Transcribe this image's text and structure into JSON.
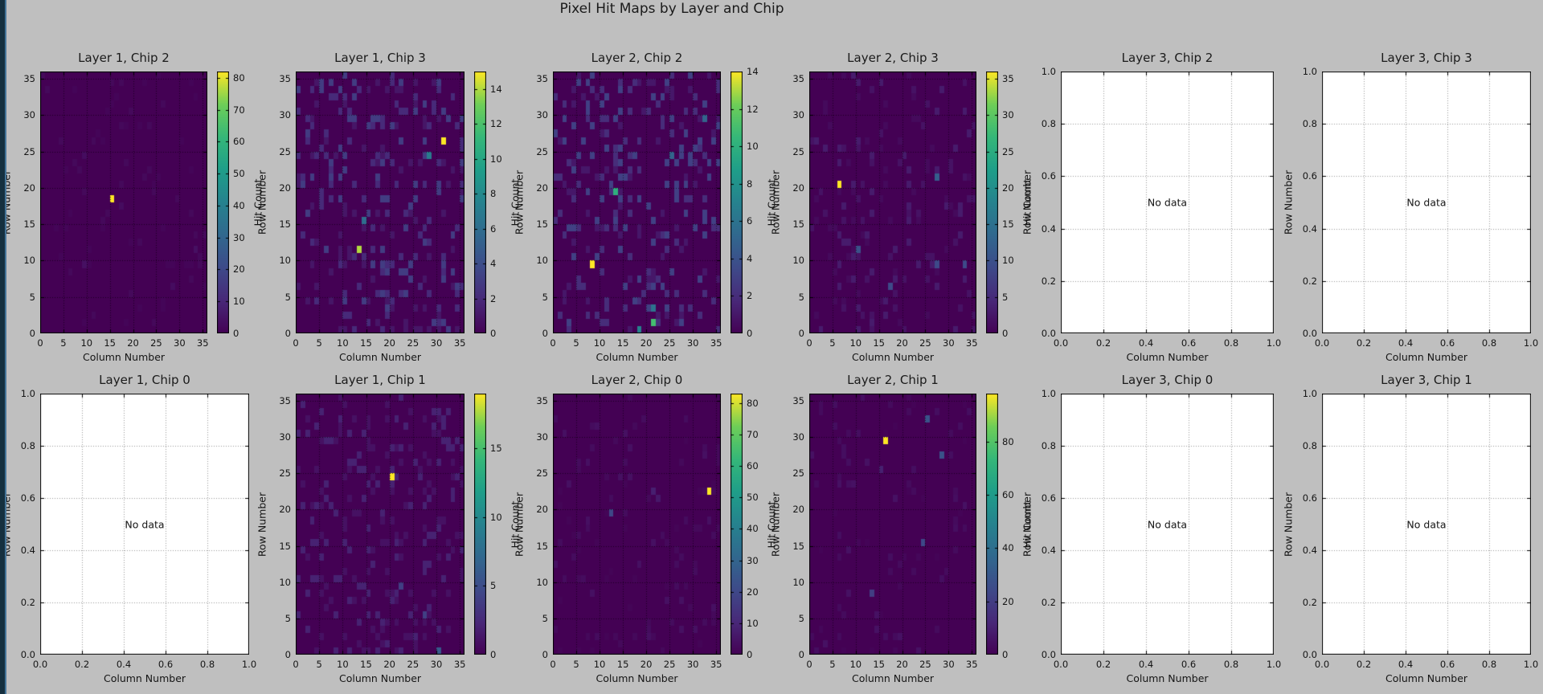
{
  "figure": {
    "title": "Pixel Hit Maps by Layer and Chip",
    "background_color": "#bfbfbf",
    "left_edge_dark": "#15303f",
    "left_edge_light": "#447498"
  },
  "shared": {
    "xlabel": "Column Number",
    "ylabel": "Row Number",
    "colorbar_label": "Hit Count",
    "no_data_text": "No data",
    "colormap": "viridis",
    "viridis_rgb_stops": [
      [
        68,
        1,
        84
      ],
      [
        72,
        40,
        120
      ],
      [
        62,
        74,
        137
      ],
      [
        49,
        104,
        142
      ],
      [
        38,
        130,
        142
      ],
      [
        31,
        158,
        137
      ],
      [
        53,
        183,
        121
      ],
      [
        110,
        206,
        88
      ],
      [
        253,
        231,
        37
      ]
    ],
    "heatmap_axis_ticks": [
      0,
      5,
      10,
      15,
      20,
      25,
      30,
      35
    ],
    "empty_axis_ticks": [
      "0.0",
      "0.2",
      "0.4",
      "0.6",
      "0.8",
      "1.0"
    ],
    "bins": 36,
    "hotspot_format": "[column, row, hit_count]"
  },
  "chart_data": [
    {
      "type": "heatmap",
      "grid": [
        0,
        0
      ],
      "title": "Layer 1, Chip 2",
      "vmin": 0,
      "vmax": 82,
      "colorbar_ticks": [
        0,
        10,
        20,
        30,
        40,
        50,
        60,
        70,
        80
      ],
      "hotspots": [
        [
          15,
          18,
          82
        ],
        [
          9,
          9,
          4
        ],
        [
          33,
          11,
          4
        ],
        [
          9,
          24,
          3
        ],
        [
          17,
          17,
          3
        ],
        [
          28,
          6,
          3
        ]
      ],
      "noise": {
        "seed": 11,
        "density": 0.05,
        "max": 2
      }
    },
    {
      "type": "heatmap",
      "grid": [
        0,
        1
      ],
      "title": "Layer 1, Chip 3",
      "vmin": 0,
      "vmax": 15,
      "colorbar_ticks": [
        0,
        2,
        4,
        6,
        8,
        10,
        12,
        14
      ],
      "hotspots": [
        [
          31,
          26,
          15
        ],
        [
          13,
          11,
          14
        ],
        [
          14,
          15,
          6
        ],
        [
          28,
          24,
          7
        ]
      ],
      "noise": {
        "seed": 22,
        "density": 0.18,
        "max": 3
      }
    },
    {
      "type": "heatmap",
      "grid": [
        0,
        2
      ],
      "title": "Layer 2, Chip 2",
      "vmin": 0,
      "vmax": 14,
      "colorbar_ticks": [
        0,
        2,
        4,
        6,
        8,
        10,
        12,
        14
      ],
      "hotspots": [
        [
          8,
          9,
          14
        ],
        [
          13,
          19,
          10
        ],
        [
          21,
          1,
          11
        ],
        [
          18,
          0,
          7
        ],
        [
          21,
          3,
          6
        ],
        [
          25,
          24,
          5
        ],
        [
          32,
          29,
          5
        ]
      ],
      "noise": {
        "seed": 33,
        "density": 0.18,
        "max": 3
      }
    },
    {
      "type": "heatmap",
      "grid": [
        0,
        3
      ],
      "title": "Layer 2, Chip 3",
      "vmin": 0,
      "vmax": 36,
      "colorbar_ticks": [
        0,
        5,
        10,
        15,
        20,
        25,
        30,
        35
      ],
      "hotspots": [
        [
          6,
          20,
          36
        ],
        [
          27,
          21,
          12
        ],
        [
          10,
          11,
          10
        ],
        [
          27,
          9,
          9
        ],
        [
          33,
          9,
          9
        ],
        [
          17,
          6,
          9
        ]
      ],
      "noise": {
        "seed": 44,
        "density": 0.12,
        "max": 3
      }
    },
    {
      "type": "empty",
      "grid": [
        0,
        4
      ],
      "title": "Layer 3, Chip 2",
      "xlim": [
        0,
        1
      ],
      "ylim": [
        0,
        1
      ]
    },
    {
      "type": "empty",
      "grid": [
        0,
        5
      ],
      "title": "Layer 3, Chip 3",
      "xlim": [
        0,
        1
      ],
      "ylim": [
        0,
        1
      ]
    },
    {
      "type": "empty",
      "grid": [
        1,
        0
      ],
      "title": "Layer 1, Chip 0",
      "xlim": [
        0,
        1
      ],
      "ylim": [
        0,
        1
      ]
    },
    {
      "type": "heatmap",
      "grid": [
        1,
        1
      ],
      "title": "Layer 1, Chip 1",
      "vmin": 0,
      "vmax": 19,
      "colorbar_ticks": [
        0,
        5,
        10,
        15
      ],
      "hotspots": [
        [
          20,
          24,
          19
        ],
        [
          30,
          0,
          6
        ],
        [
          27,
          5,
          4
        ],
        [
          22,
          9,
          4
        ]
      ],
      "noise": {
        "seed": 55,
        "density": 0.16,
        "max": 2
      }
    },
    {
      "type": "heatmap",
      "grid": [
        1,
        2
      ],
      "title": "Layer 2, Chip 0",
      "vmin": 0,
      "vmax": 83,
      "colorbar_ticks": [
        0,
        10,
        20,
        30,
        40,
        50,
        60,
        70,
        80
      ],
      "hotspots": [
        [
          33,
          22,
          83
        ],
        [
          12,
          19,
          20
        ],
        [
          21,
          22,
          8
        ],
        [
          22,
          21,
          6
        ]
      ],
      "noise": {
        "seed": 66,
        "density": 0.06,
        "max": 4
      }
    },
    {
      "type": "heatmap",
      "grid": [
        1,
        3
      ],
      "title": "Layer 2, Chip 1",
      "vmin": 0,
      "vmax": 98,
      "colorbar_ticks": [
        0,
        20,
        40,
        60,
        80
      ],
      "hotspots": [
        [
          16,
          29,
          98
        ],
        [
          25,
          32,
          28
        ],
        [
          28,
          27,
          28
        ],
        [
          24,
          15,
          24
        ],
        [
          13,
          8,
          20
        ],
        [
          15,
          25,
          10
        ]
      ],
      "noise": {
        "seed": 77,
        "density": 0.06,
        "max": 5
      }
    },
    {
      "type": "empty",
      "grid": [
        1,
        4
      ],
      "title": "Layer 3, Chip 0",
      "xlim": [
        0,
        1
      ],
      "ylim": [
        0,
        1
      ]
    },
    {
      "type": "empty",
      "grid": [
        1,
        5
      ],
      "title": "Layer 3, Chip 1",
      "xlim": [
        0,
        1
      ],
      "ylim": [
        0,
        1
      ]
    }
  ]
}
